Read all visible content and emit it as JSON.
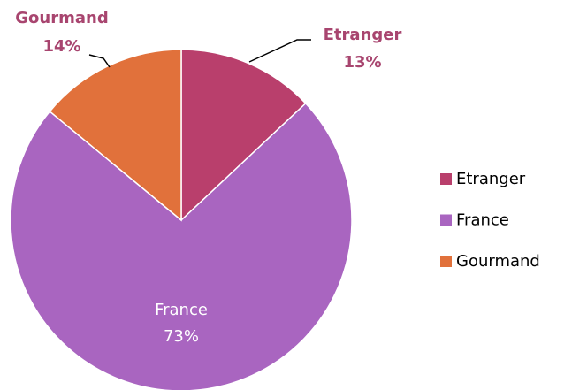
{
  "chart_data": {
    "type": "pie",
    "categories": [
      "Etranger",
      "France",
      "Gourmand"
    ],
    "values": [
      13,
      73,
      14
    ],
    "value_labels": [
      "13%",
      "73%",
      "14%"
    ],
    "colors": [
      "#b93f6c",
      "#a965c0",
      "#e1713b"
    ],
    "legend": "right"
  }
}
